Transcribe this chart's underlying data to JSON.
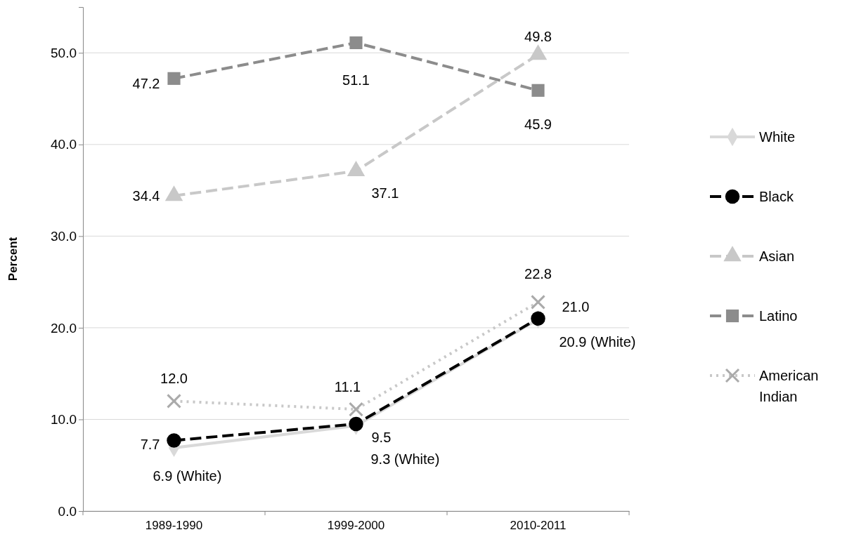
{
  "chart_data": {
    "type": "line",
    "ylabel": "Percent",
    "categories": [
      "1989-1990",
      "1999-2000",
      "2010-2011"
    ],
    "ylim": [
      0,
      55
    ],
    "yticks": [
      {
        "value": 0,
        "label": "0.0"
      },
      {
        "value": 10,
        "label": "10.0"
      },
      {
        "value": 20,
        "label": "20.0"
      },
      {
        "value": 30,
        "label": "30.0"
      },
      {
        "value": 40,
        "label": "40.0"
      },
      {
        "value": 50,
        "label": "50.0"
      }
    ],
    "grid": "y",
    "legend": "right",
    "series": [
      {
        "name": "White",
        "color": "#d9d9d9",
        "marker": "diamond",
        "line_style": "solid",
        "values": [
          6.9,
          9.3,
          20.9
        ],
        "value_labels": [
          "6.9 (White)",
          "9.3 (White)",
          "20.9 (White)"
        ]
      },
      {
        "name": "Black",
        "color": "#000000",
        "marker": "circle",
        "line_style": "dashed",
        "values": [
          7.7,
          9.5,
          21.0
        ],
        "value_labels": [
          "7.7",
          "9.5",
          "21.0"
        ]
      },
      {
        "name": "Asian",
        "color": "#c8c8c8",
        "marker": "triangle",
        "line_style": "dashed",
        "values": [
          34.4,
          37.1,
          49.8
        ],
        "value_labels": [
          "34.4",
          "37.1",
          "49.8"
        ]
      },
      {
        "name": "Latino",
        "color": "#8c8c8c",
        "marker": "square",
        "line_style": "dashed",
        "values": [
          47.2,
          51.1,
          45.9
        ],
        "value_labels": [
          "47.2",
          "51.1",
          "45.9"
        ]
      },
      {
        "name": "American Indian",
        "color": "#c8c8c8",
        "marker": "cross",
        "line_style": "dotted",
        "values": [
          12.0,
          11.1,
          22.8
        ],
        "value_labels": [
          "12.0",
          "11.1",
          "22.8"
        ]
      }
    ]
  }
}
